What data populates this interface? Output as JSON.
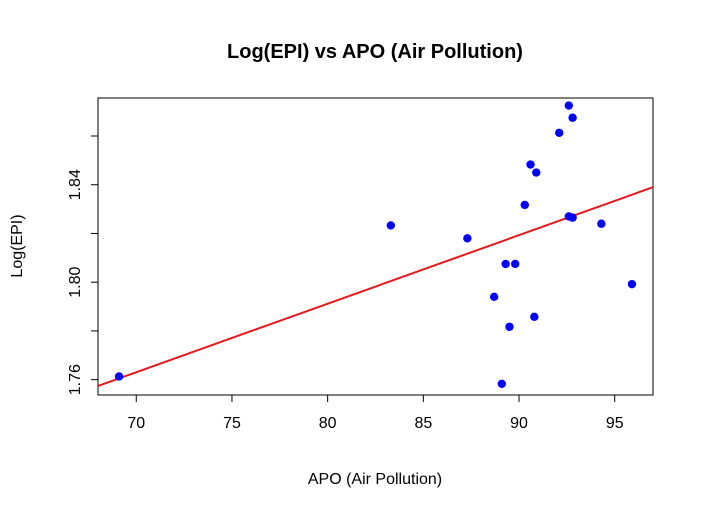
{
  "chart_data": {
    "type": "scatter",
    "title": "Log(EPI) vs APO (Air Pollution)",
    "xlabel": "APO (Air Pollution)",
    "ylabel": "Log(EPI)",
    "xlim": [
      68,
      97
    ],
    "ylim": [
      1.7537,
      1.8756
    ],
    "x_ticks": [
      70,
      75,
      80,
      85,
      90,
      95
    ],
    "x_tick_labels": [
      "70",
      "75",
      "80",
      "85",
      "90",
      "95"
    ],
    "y_ticks": [
      1.76,
      1.8,
      1.84
    ],
    "y_tick_labels": [
      "1.76",
      "1.80",
      "1.84"
    ],
    "grid": false,
    "legend": "none",
    "points": [
      {
        "x": 69.1,
        "y": 1.7613
      },
      {
        "x": 83.3,
        "y": 1.8233
      },
      {
        "x": 87.3,
        "y": 1.818
      },
      {
        "x": 88.7,
        "y": 1.794
      },
      {
        "x": 89.1,
        "y": 1.7583
      },
      {
        "x": 89.3,
        "y": 1.8075
      },
      {
        "x": 89.5,
        "y": 1.7817
      },
      {
        "x": 89.8,
        "y": 1.8075
      },
      {
        "x": 90.3,
        "y": 1.8317
      },
      {
        "x": 90.6,
        "y": 1.8483
      },
      {
        "x": 90.8,
        "y": 1.7858
      },
      {
        "x": 90.9,
        "y": 1.845
      },
      {
        "x": 92.1,
        "y": 1.8613
      },
      {
        "x": 92.6,
        "y": 1.827
      },
      {
        "x": 92.6,
        "y": 1.8725
      },
      {
        "x": 92.8,
        "y": 1.8265
      },
      {
        "x": 92.8,
        "y": 1.8675
      },
      {
        "x": 94.3,
        "y": 1.824
      },
      {
        "x": 95.9,
        "y": 1.7992
      }
    ],
    "regression_line": {
      "x": [
        68,
        97
      ],
      "y": [
        1.7574,
        1.839
      ]
    },
    "colors": {
      "points": "#0000ff",
      "line": "#e41a1c",
      "axes": "#000000"
    }
  }
}
